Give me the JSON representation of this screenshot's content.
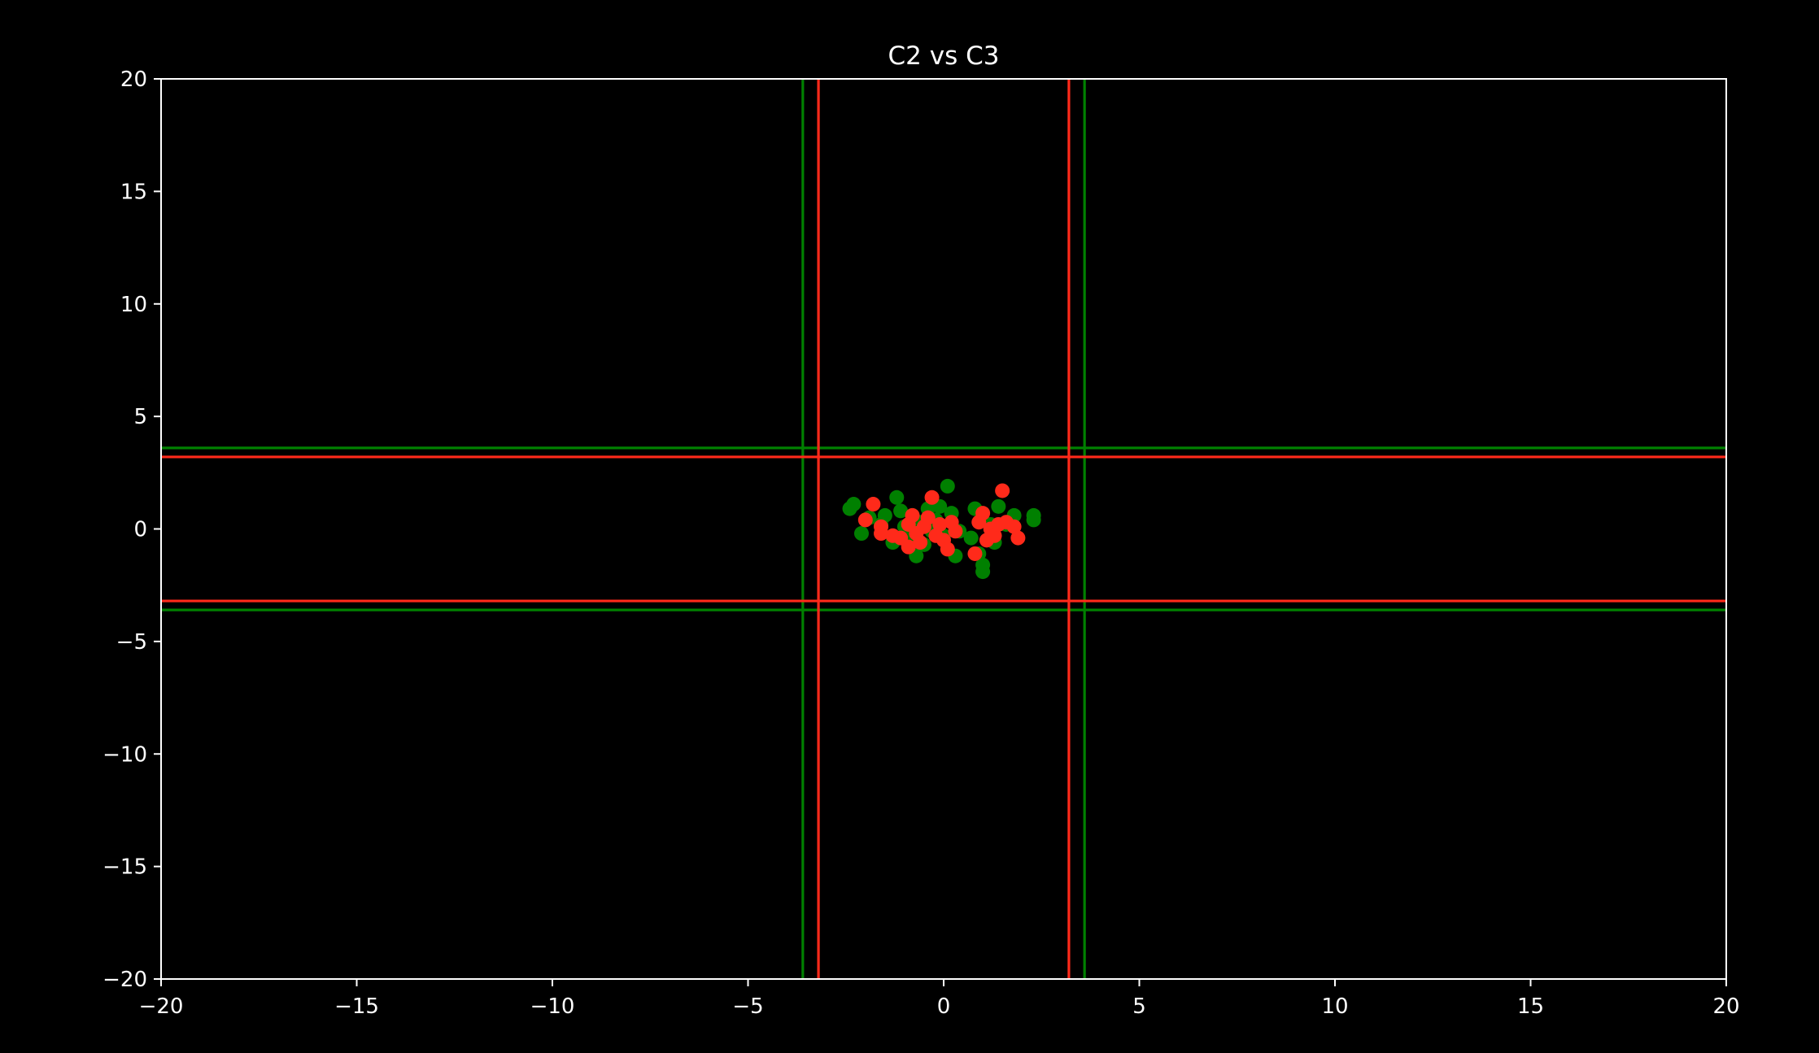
{
  "chart_data": {
    "type": "scatter",
    "title": "C2 vs C3",
    "xlabel": "",
    "ylabel": "",
    "xlim": [
      -20,
      20
    ],
    "ylim": [
      -20,
      20
    ],
    "xticks": [
      -20,
      -15,
      -10,
      -5,
      0,
      5,
      10,
      15,
      20
    ],
    "yticks": [
      -20,
      -15,
      -10,
      -5,
      0,
      5,
      10,
      15,
      20
    ],
    "xtick_labels": [
      "−20",
      "−15",
      "−10",
      "−5",
      "0",
      "5",
      "10",
      "15",
      "20"
    ],
    "ytick_labels": [
      "−20",
      "−15",
      "−10",
      "−5",
      "0",
      "5",
      "10",
      "15",
      "20"
    ],
    "grid": false,
    "legend": "none",
    "background": "#000000",
    "axes_color": "#ffffff",
    "series": [
      {
        "color": "#008000",
        "points": [
          [
            -2.4,
            0.9
          ],
          [
            -2.3,
            1.1
          ],
          [
            -2.1,
            -0.2
          ],
          [
            -1.9,
            0.5
          ],
          [
            -1.6,
            0.2
          ],
          [
            -1.5,
            0.6
          ],
          [
            -1.3,
            -0.6
          ],
          [
            -1.2,
            1.4
          ],
          [
            -1.1,
            0.8
          ],
          [
            -1.0,
            0.1
          ],
          [
            -0.9,
            -0.3
          ],
          [
            -0.8,
            0.6
          ],
          [
            -0.7,
            -1.2
          ],
          [
            -0.6,
            0.3
          ],
          [
            -0.5,
            -0.7
          ],
          [
            -0.4,
            0.9
          ],
          [
            -0.3,
            -0.1
          ],
          [
            -0.2,
            0.4
          ],
          [
            -0.1,
            1.0
          ],
          [
            0.0,
            -0.3
          ],
          [
            0.1,
            1.9
          ],
          [
            0.2,
            0.7
          ],
          [
            0.3,
            -1.2
          ],
          [
            0.4,
            -0.1
          ],
          [
            0.7,
            -0.4
          ],
          [
            0.8,
            0.9
          ],
          [
            0.9,
            -1.1
          ],
          [
            1.0,
            -1.9
          ],
          [
            1.0,
            -1.6
          ],
          [
            1.2,
            0.2
          ],
          [
            1.3,
            -0.6
          ],
          [
            1.4,
            1.0
          ],
          [
            1.6,
            0.2
          ],
          [
            1.8,
            0.6
          ],
          [
            2.3,
            0.6
          ],
          [
            2.3,
            0.4
          ]
        ],
        "vlines": [
          -3.6,
          3.6
        ],
        "hlines": [
          3.6,
          -3.6
        ]
      },
      {
        "color": "#ff2a1a",
        "points": [
          [
            -2.0,
            0.4
          ],
          [
            -1.8,
            1.1
          ],
          [
            -1.6,
            -0.2
          ],
          [
            -1.6,
            0.1
          ],
          [
            -1.3,
            -0.3
          ],
          [
            -1.1,
            -0.4
          ],
          [
            -0.9,
            0.2
          ],
          [
            -0.9,
            -0.8
          ],
          [
            -0.8,
            0.6
          ],
          [
            -0.7,
            -0.2
          ],
          [
            -0.6,
            -0.6
          ],
          [
            -0.5,
            0.1
          ],
          [
            -0.4,
            0.5
          ],
          [
            -0.3,
            1.4
          ],
          [
            -0.2,
            -0.3
          ],
          [
            -0.1,
            0.2
          ],
          [
            0.0,
            -0.5
          ],
          [
            0.1,
            -0.9
          ],
          [
            0.2,
            0.3
          ],
          [
            0.3,
            -0.1
          ],
          [
            0.8,
            -1.1
          ],
          [
            0.9,
            0.3
          ],
          [
            1.0,
            0.7
          ],
          [
            1.1,
            -0.5
          ],
          [
            1.2,
            0.0
          ],
          [
            1.3,
            -0.3
          ],
          [
            1.4,
            0.2
          ],
          [
            1.5,
            1.7
          ],
          [
            1.6,
            0.3
          ],
          [
            1.8,
            0.1
          ],
          [
            1.9,
            -0.4
          ]
        ],
        "vlines": [
          -3.2,
          3.2
        ],
        "hlines": [
          3.2,
          -3.2
        ]
      }
    ]
  }
}
